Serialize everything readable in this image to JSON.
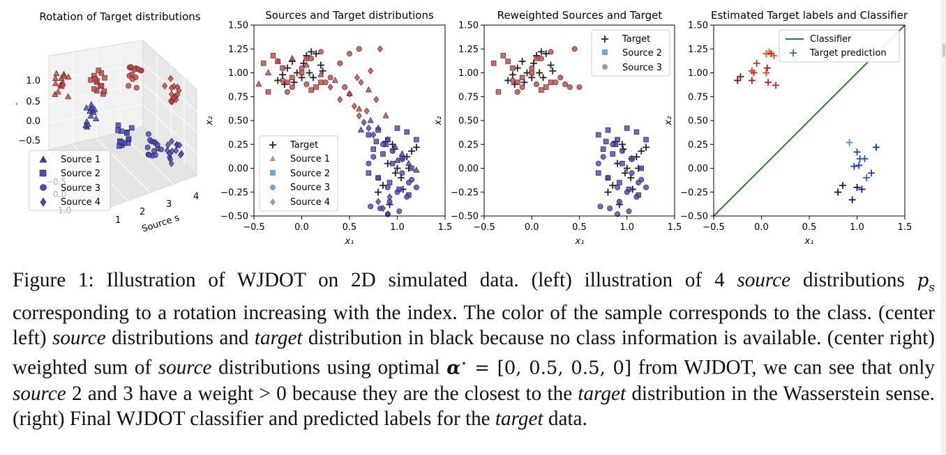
{
  "figure": {
    "panel1": {
      "title": "Rotation of Target distributions",
      "z_ticks": [
        "1.0",
        "0.5",
        "0.0",
        "−0.5"
      ],
      "x_ticks": [
        "1",
        "2",
        "3",
        "4"
      ],
      "x_label": "Source s",
      "legend": [
        "Source 1",
        "Source 2",
        "Source 3",
        "Source 4"
      ],
      "back_tick_labels": [
        "−0.5",
        "0.0",
        "1.0"
      ]
    },
    "panel2": {
      "title": "Sources and Target distributions",
      "xlabel": "x₁",
      "ylabel": "x₂",
      "legend": [
        "Target",
        "Source 1",
        "Source 2",
        "Source 3",
        "Source 4"
      ]
    },
    "panel3": {
      "title": "Reweighted Sources and Target",
      "xlabel": "x₁",
      "ylabel": "x₂",
      "legend": [
        "Target",
        "Source 2",
        "Source 3"
      ]
    },
    "panel4": {
      "title": "Estimated Target labels and Classifier",
      "xlabel": "x₁",
      "ylabel": "x₂",
      "legend": [
        "Classifier",
        "Target prediction"
      ]
    },
    "x_ticks": [
      "−0.5",
      "0.0",
      "0.5",
      "1.0",
      "1.5"
    ],
    "y_ticks": [
      "1.50",
      "1.25",
      "1.00",
      "0.75",
      "0.50",
      "0.25",
      "0.00",
      "−0.25",
      "−0.50"
    ]
  },
  "chart_data": [
    {
      "type": "scatter",
      "title": "Sources and Target distributions",
      "xlabel": "x1",
      "ylabel": "x2",
      "xlim": [
        -0.5,
        1.5
      ],
      "ylim": [
        -0.5,
        1.5
      ],
      "series": [
        {
          "name": "Target",
          "marker": "plus",
          "x": [
            -0.25,
            -0.2,
            -0.15,
            -0.1,
            -0.05,
            0.0,
            0.05,
            0.1,
            0.15,
            0.2,
            -0.08,
            0.08,
            0.02,
            -0.18,
            0.12,
            0.22,
            0.8,
            0.85,
            0.9,
            0.95,
            1.0,
            1.05,
            1.1,
            1.15,
            1.2,
            0.98,
            1.06,
            0.92,
            0.88,
            1.12,
            0.96,
            1.04
          ],
          "y": [
            0.92,
            0.98,
            1.05,
            1.12,
            1.0,
            0.95,
            1.18,
            1.22,
            1.2,
            1.08,
            0.9,
            1.0,
            1.1,
            0.88,
            0.95,
            1.02,
            -0.25,
            -0.18,
            0.05,
            0.25,
            0.0,
            0.1,
            0.12,
            0.18,
            0.22,
            -0.05,
            -0.22,
            -0.38,
            0.28,
            0.0,
            0.2,
            -0.1
          ]
        },
        {
          "name": "Source 1",
          "marker": "triangle",
          "x": [
            -0.45,
            -0.35,
            -0.25,
            -0.1,
            0.05,
            0.2,
            0.35,
            0.5,
            0.6,
            0.72,
            0.8,
            0.9,
            0.98,
            1.05,
            1.12,
            1.2,
            0.62,
            0.7,
            0.88,
            1.0
          ],
          "y": [
            0.88,
            1.0,
            1.12,
            1.15,
            1.08,
            0.98,
            0.92,
            0.78,
            0.62,
            0.5,
            0.42,
            0.3,
            0.22,
            0.15,
            0.05,
            -0.02,
            0.4,
            0.82,
            0.55,
            0.08
          ]
        },
        {
          "name": "Source 2",
          "marker": "square",
          "x": [
            -0.4,
            -0.3,
            -0.2,
            -0.1,
            0.0,
            0.1,
            0.2,
            -0.35,
            -0.25,
            -0.15,
            0.05,
            0.15,
            0.7,
            0.8,
            0.9,
            1.0,
            1.1,
            1.2,
            0.75,
            0.85,
            0.95,
            1.05,
            1.15,
            0.7,
            0.8,
            0.92,
            1.02,
            1.12,
            0.78,
            0.88
          ],
          "y": [
            1.1,
            1.18,
            1.05,
            0.95,
            1.0,
            0.82,
            0.9,
            0.8,
            1.12,
            0.9,
            1.15,
            0.85,
            0.35,
            0.4,
            0.3,
            0.42,
            0.38,
            0.3,
            0.2,
            0.15,
            0.05,
            0.1,
            0.0,
            -0.05,
            -0.1,
            -0.15,
            -0.22,
            -0.28,
            0.28,
            0.25
          ]
        },
        {
          "name": "Source 3",
          "marker": "circle",
          "x": [
            -0.2,
            -0.1,
            0.0,
            0.1,
            0.2,
            0.3,
            0.4,
            0.5,
            0.6,
            -0.15,
            0.05,
            0.25,
            0.45,
            0.7,
            0.8,
            0.9,
            1.0,
            1.1,
            1.2,
            0.75,
            0.85,
            0.95,
            1.05,
            1.15,
            0.72,
            0.82,
            0.92,
            1.02,
            1.12,
            0.9
          ],
          "y": [
            0.92,
            0.85,
            1.05,
            1.15,
            1.22,
            0.95,
            1.1,
            1.2,
            1.25,
            0.8,
            0.88,
            0.9,
            0.85,
            0.05,
            -0.1,
            -0.2,
            -0.25,
            -0.3,
            -0.2,
            0.12,
            0.25,
            0.18,
            -0.05,
            -0.12,
            -0.4,
            -0.42,
            -0.35,
            -0.45,
            -0.15,
            -0.48
          ]
        },
        {
          "name": "Source 4",
          "marker": "diamond",
          "x": [
            0.3,
            0.4,
            0.5,
            0.55,
            0.6,
            0.65,
            0.7,
            0.75,
            0.8,
            0.85,
            0.9,
            0.62,
            0.72,
            0.82,
            0.78,
            0.68,
            0.58,
            0.92
          ],
          "y": [
            0.85,
            0.72,
            0.78,
            0.65,
            0.55,
            0.48,
            0.42,
            0.35,
            -0.35,
            -0.42,
            -0.48,
            0.9,
            1.02,
            1.25,
            0.72,
            0.6,
            0.95,
            -0.3
          ]
        }
      ]
    },
    {
      "type": "scatter",
      "title": "Reweighted Sources and Target",
      "xlabel": "x1",
      "ylabel": "x2",
      "xlim": [
        -0.5,
        1.5
      ],
      "ylim": [
        -0.5,
        1.5
      ],
      "series": [
        {
          "name": "Target",
          "marker": "plus",
          "x": [
            -0.25,
            -0.2,
            -0.15,
            -0.1,
            -0.05,
            0.0,
            0.05,
            0.1,
            0.15,
            0.2,
            -0.08,
            0.08,
            0.02,
            -0.18,
            0.12,
            0.22,
            0.8,
            0.85,
            0.9,
            0.95,
            1.0,
            1.05,
            1.1,
            1.15,
            1.2,
            0.98,
            1.06,
            0.92,
            0.88,
            1.12,
            0.96,
            1.04
          ],
          "y": [
            0.92,
            0.98,
            1.05,
            1.12,
            1.0,
            0.95,
            1.18,
            1.22,
            1.2,
            1.08,
            0.9,
            1.0,
            1.1,
            0.88,
            0.95,
            1.02,
            -0.25,
            -0.18,
            0.05,
            0.25,
            0.0,
            0.1,
            0.12,
            0.18,
            0.22,
            -0.05,
            -0.22,
            -0.38,
            0.28,
            0.0,
            0.2,
            -0.1
          ]
        },
        {
          "name": "Source 2",
          "marker": "square",
          "x": [
            -0.4,
            -0.3,
            -0.2,
            -0.1,
            0.0,
            0.1,
            0.2,
            -0.35,
            -0.25,
            -0.15,
            0.05,
            0.15,
            0.7,
            0.8,
            0.9,
            1.0,
            1.1,
            1.2,
            0.75,
            0.85,
            0.95,
            1.05,
            1.15,
            0.7,
            0.8,
            0.92,
            1.02,
            1.12,
            0.78,
            0.88
          ],
          "y": [
            1.1,
            1.18,
            1.05,
            0.95,
            1.0,
            0.82,
            0.9,
            0.8,
            1.12,
            0.9,
            1.15,
            0.85,
            0.35,
            0.4,
            0.3,
            0.42,
            0.38,
            0.3,
            0.2,
            0.15,
            0.05,
            0.1,
            0.0,
            -0.05,
            -0.1,
            -0.15,
            -0.22,
            -0.28,
            0.28,
            0.25
          ]
        },
        {
          "name": "Source 3",
          "marker": "circle",
          "x": [
            -0.2,
            -0.1,
            0.0,
            0.1,
            0.2,
            0.3,
            0.35,
            0.45,
            0.4,
            -0.15,
            0.05,
            0.25,
            0.5,
            0.7,
            0.8,
            0.9,
            1.0,
            1.1,
            1.2,
            0.75,
            0.85,
            0.95,
            1.05,
            1.15,
            0.72,
            0.82,
            0.92,
            1.02,
            1.12,
            0.9
          ],
          "y": [
            0.92,
            0.85,
            1.05,
            1.15,
            1.22,
            0.95,
            0.88,
            1.25,
            0.85,
            0.8,
            0.88,
            0.9,
            0.85,
            0.05,
            -0.1,
            -0.2,
            -0.25,
            -0.3,
            -0.2,
            0.12,
            0.25,
            0.18,
            -0.05,
            -0.12,
            -0.4,
            -0.42,
            -0.35,
            -0.45,
            -0.15,
            -0.48
          ]
        }
      ]
    },
    {
      "type": "scatter",
      "title": "Estimated Target labels and Classifier",
      "xlabel": "x1",
      "ylabel": "x2",
      "xlim": [
        -0.5,
        1.5
      ],
      "ylim": [
        -0.5,
        1.5
      ],
      "classifier_line": {
        "name": "Classifier",
        "x": [
          -0.5,
          1.5
        ],
        "y": [
          -0.5,
          1.5
        ]
      },
      "series": [
        {
          "name": "Target prediction (class A, red)",
          "marker": "plus",
          "x": [
            -0.25,
            -0.22,
            -0.1,
            -0.08,
            -0.05,
            -0.1,
            0.05,
            0.08,
            0.06,
            0.07,
            0.15,
            0.1,
            0.13,
            0.05
          ],
          "y": [
            0.92,
            0.96,
            0.92,
            1.0,
            1.1,
            1.02,
            1.2,
            1.22,
            1.05,
            0.9,
            0.87,
            1.2,
            1.18,
            1.0
          ]
        },
        {
          "name": "Target prediction (class B, blue)",
          "marker": "plus",
          "x": [
            0.8,
            0.85,
            0.92,
            0.95,
            0.97,
            1.0,
            1.02,
            1.05,
            1.08,
            1.1,
            1.15,
            1.2,
            1.0,
            1.03
          ],
          "y": [
            -0.25,
            -0.18,
            0.27,
            -0.33,
            0.02,
            0.17,
            0.03,
            -0.22,
            0.1,
            -0.1,
            -0.05,
            0.22,
            -0.2,
            0.1
          ]
        }
      ]
    }
  ],
  "caption": {
    "p1": "Figure 1: Illustration of WJDOT on 2D simulated data. (left) illustration of 4 ",
    "p1_em": "source",
    "p1b": " distributions ",
    "p1_math": "p",
    "p1_sub": "s",
    "p2": " corresponding to a rotation increasing with the index. The color of the sample corresponds to the class. (center left) ",
    "p2_em": "source",
    "p3": " distributions and ",
    "p3_em": "target",
    "p4": " distribution in black because no class information is available. (center right) weighted sum of ",
    "p4_em": "source",
    "p5": " distributions using optimal ",
    "alpha": "α",
    "alpha_sup": "⋆",
    "eq": " = [0, 0.5, 0.5, 0]",
    "p6": " from WJDOT, we can see that only ",
    "p6_em": "source",
    "p7": " 2 and 3 have a weight > 0 because they are the closest to the ",
    "p7_em": "target",
    "p8": " distribution in the Wasserstein sense. (right) Final WJDOT classifier and predicted labels for the ",
    "p8_em": "target",
    "p9": " data."
  },
  "colors": {
    "red": "#a83a32",
    "blue": "#2c2c8c",
    "target": "#222222",
    "classifier": "#2a7d2a",
    "prediction": "#1f77b4"
  }
}
